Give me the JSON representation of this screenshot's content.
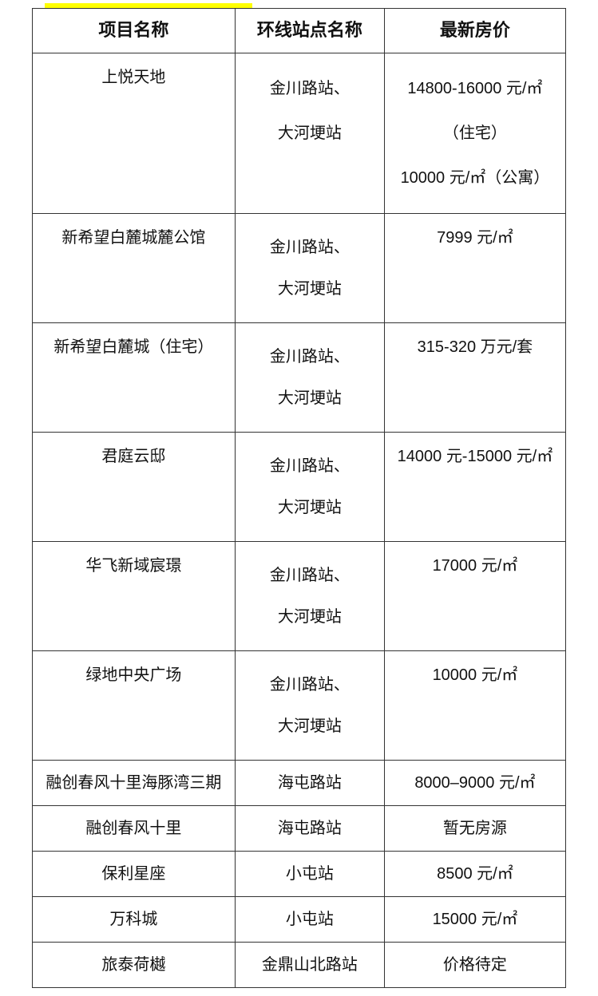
{
  "table": {
    "columns": [
      "项目名称",
      "环线站点名称",
      "最新房价"
    ],
    "col_widths_pct": [
      38,
      28,
      34
    ],
    "border_color": "#333333",
    "background_color": "#ffffff",
    "text_color": "#111111",
    "header_fontsize": 22,
    "cell_fontsize": 20,
    "rows": [
      {
        "project": "上悦天地",
        "station_lines": [
          "金川路站、",
          "大河埂站"
        ],
        "price_lines": [
          "14800-16000 元/㎡",
          "（住宅）",
          "10000 元/㎡（公寓）"
        ]
      },
      {
        "project": "新希望白麓城麓公馆",
        "station_lines": [
          "金川路站、",
          "大河埂站"
        ],
        "price_lines": [
          "7999 元/㎡"
        ]
      },
      {
        "project": "新希望白麓城（住宅）",
        "station_lines": [
          "金川路站、",
          "大河埂站"
        ],
        "price_lines": [
          "315-320 万元/套"
        ]
      },
      {
        "project": "君庭云邸",
        "station_lines": [
          "金川路站、",
          "大河埂站"
        ],
        "price_lines": [
          "14000 元-15000 元/㎡"
        ]
      },
      {
        "project": "华飞新域宸璟",
        "station_lines": [
          "金川路站、",
          "大河埂站"
        ],
        "price_lines": [
          "17000 元/㎡"
        ]
      },
      {
        "project": "绿地中央广场",
        "station_lines": [
          "金川路站、",
          "大河埂站"
        ],
        "price_lines": [
          "10000 元/㎡"
        ]
      },
      {
        "project": "融创春风十里海豚湾三期",
        "station_lines": [
          "海屯路站"
        ],
        "price_lines": [
          "8000–9000 元/㎡"
        ]
      },
      {
        "project": "融创春风十里",
        "station_lines": [
          "海屯路站"
        ],
        "price_lines": [
          "暂无房源"
        ]
      },
      {
        "project": "保利星座",
        "station_lines": [
          "小屯站"
        ],
        "price_lines": [
          "8500 元/㎡"
        ]
      },
      {
        "project": "万科城",
        "station_lines": [
          "小屯站"
        ],
        "price_lines": [
          "15000 元/㎡"
        ]
      },
      {
        "project": "旅泰荷樾",
        "station_lines": [
          "金鼎山北路站"
        ],
        "price_lines": [
          "价格待定"
        ]
      }
    ]
  },
  "highlight_bar_color": "#ffff00"
}
